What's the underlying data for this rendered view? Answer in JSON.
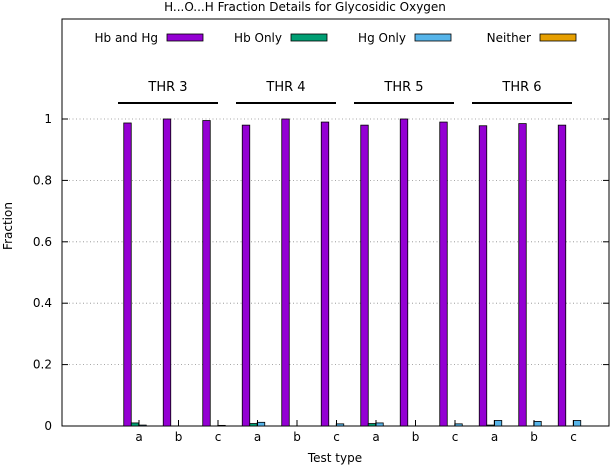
{
  "chart_data": {
    "type": "bar",
    "title": "H...O...H Fraction Details for Glycosidic Oxygen",
    "xlabel": "Test type",
    "ylabel": "Fraction",
    "ylim": [
      0,
      1.2
    ],
    "yticks": [
      0,
      0.2,
      0.4,
      0.6,
      0.8,
      1
    ],
    "ytick_labels": [
      "0",
      "0.2",
      "0.4",
      "0.6",
      "0.8",
      "1"
    ],
    "grid": "horizontal dotted",
    "legend_position": "top",
    "groups": [
      {
        "label": "THR 3",
        "categories": [
          "a",
          "b",
          "c"
        ]
      },
      {
        "label": "THR 4",
        "categories": [
          "a",
          "b",
          "c"
        ]
      },
      {
        "label": "THR 5",
        "categories": [
          "a",
          "b",
          "c"
        ]
      },
      {
        "label": "THR 6",
        "categories": [
          "a",
          "b",
          "c"
        ]
      }
    ],
    "categories": [
      "a",
      "b",
      "c",
      "a",
      "b",
      "c",
      "a",
      "b",
      "c",
      "a",
      "b",
      "c"
    ],
    "series": [
      {
        "name": "Hb and Hg",
        "color": "#9400d3",
        "values": [
          0.987,
          1.0,
          0.995,
          0.98,
          1.0,
          0.99,
          0.98,
          1.0,
          0.99,
          0.978,
          0.985,
          0.98
        ]
      },
      {
        "name": "Hb Only",
        "color": "#009e73",
        "values": [
          0.01,
          0,
          0,
          0.008,
          0,
          0,
          0.008,
          0,
          0,
          0.003,
          0,
          0
        ]
      },
      {
        "name": "Hg Only",
        "color": "#56b4e9",
        "values": [
          0.003,
          0,
          0.002,
          0.012,
          0,
          0.007,
          0.01,
          0,
          0.007,
          0.018,
          0.015,
          0.018
        ]
      },
      {
        "name": "Neither",
        "color": "#e69f00",
        "values": [
          0,
          0,
          0,
          0,
          0,
          0,
          0,
          0,
          0,
          0,
          0,
          0
        ]
      }
    ]
  }
}
